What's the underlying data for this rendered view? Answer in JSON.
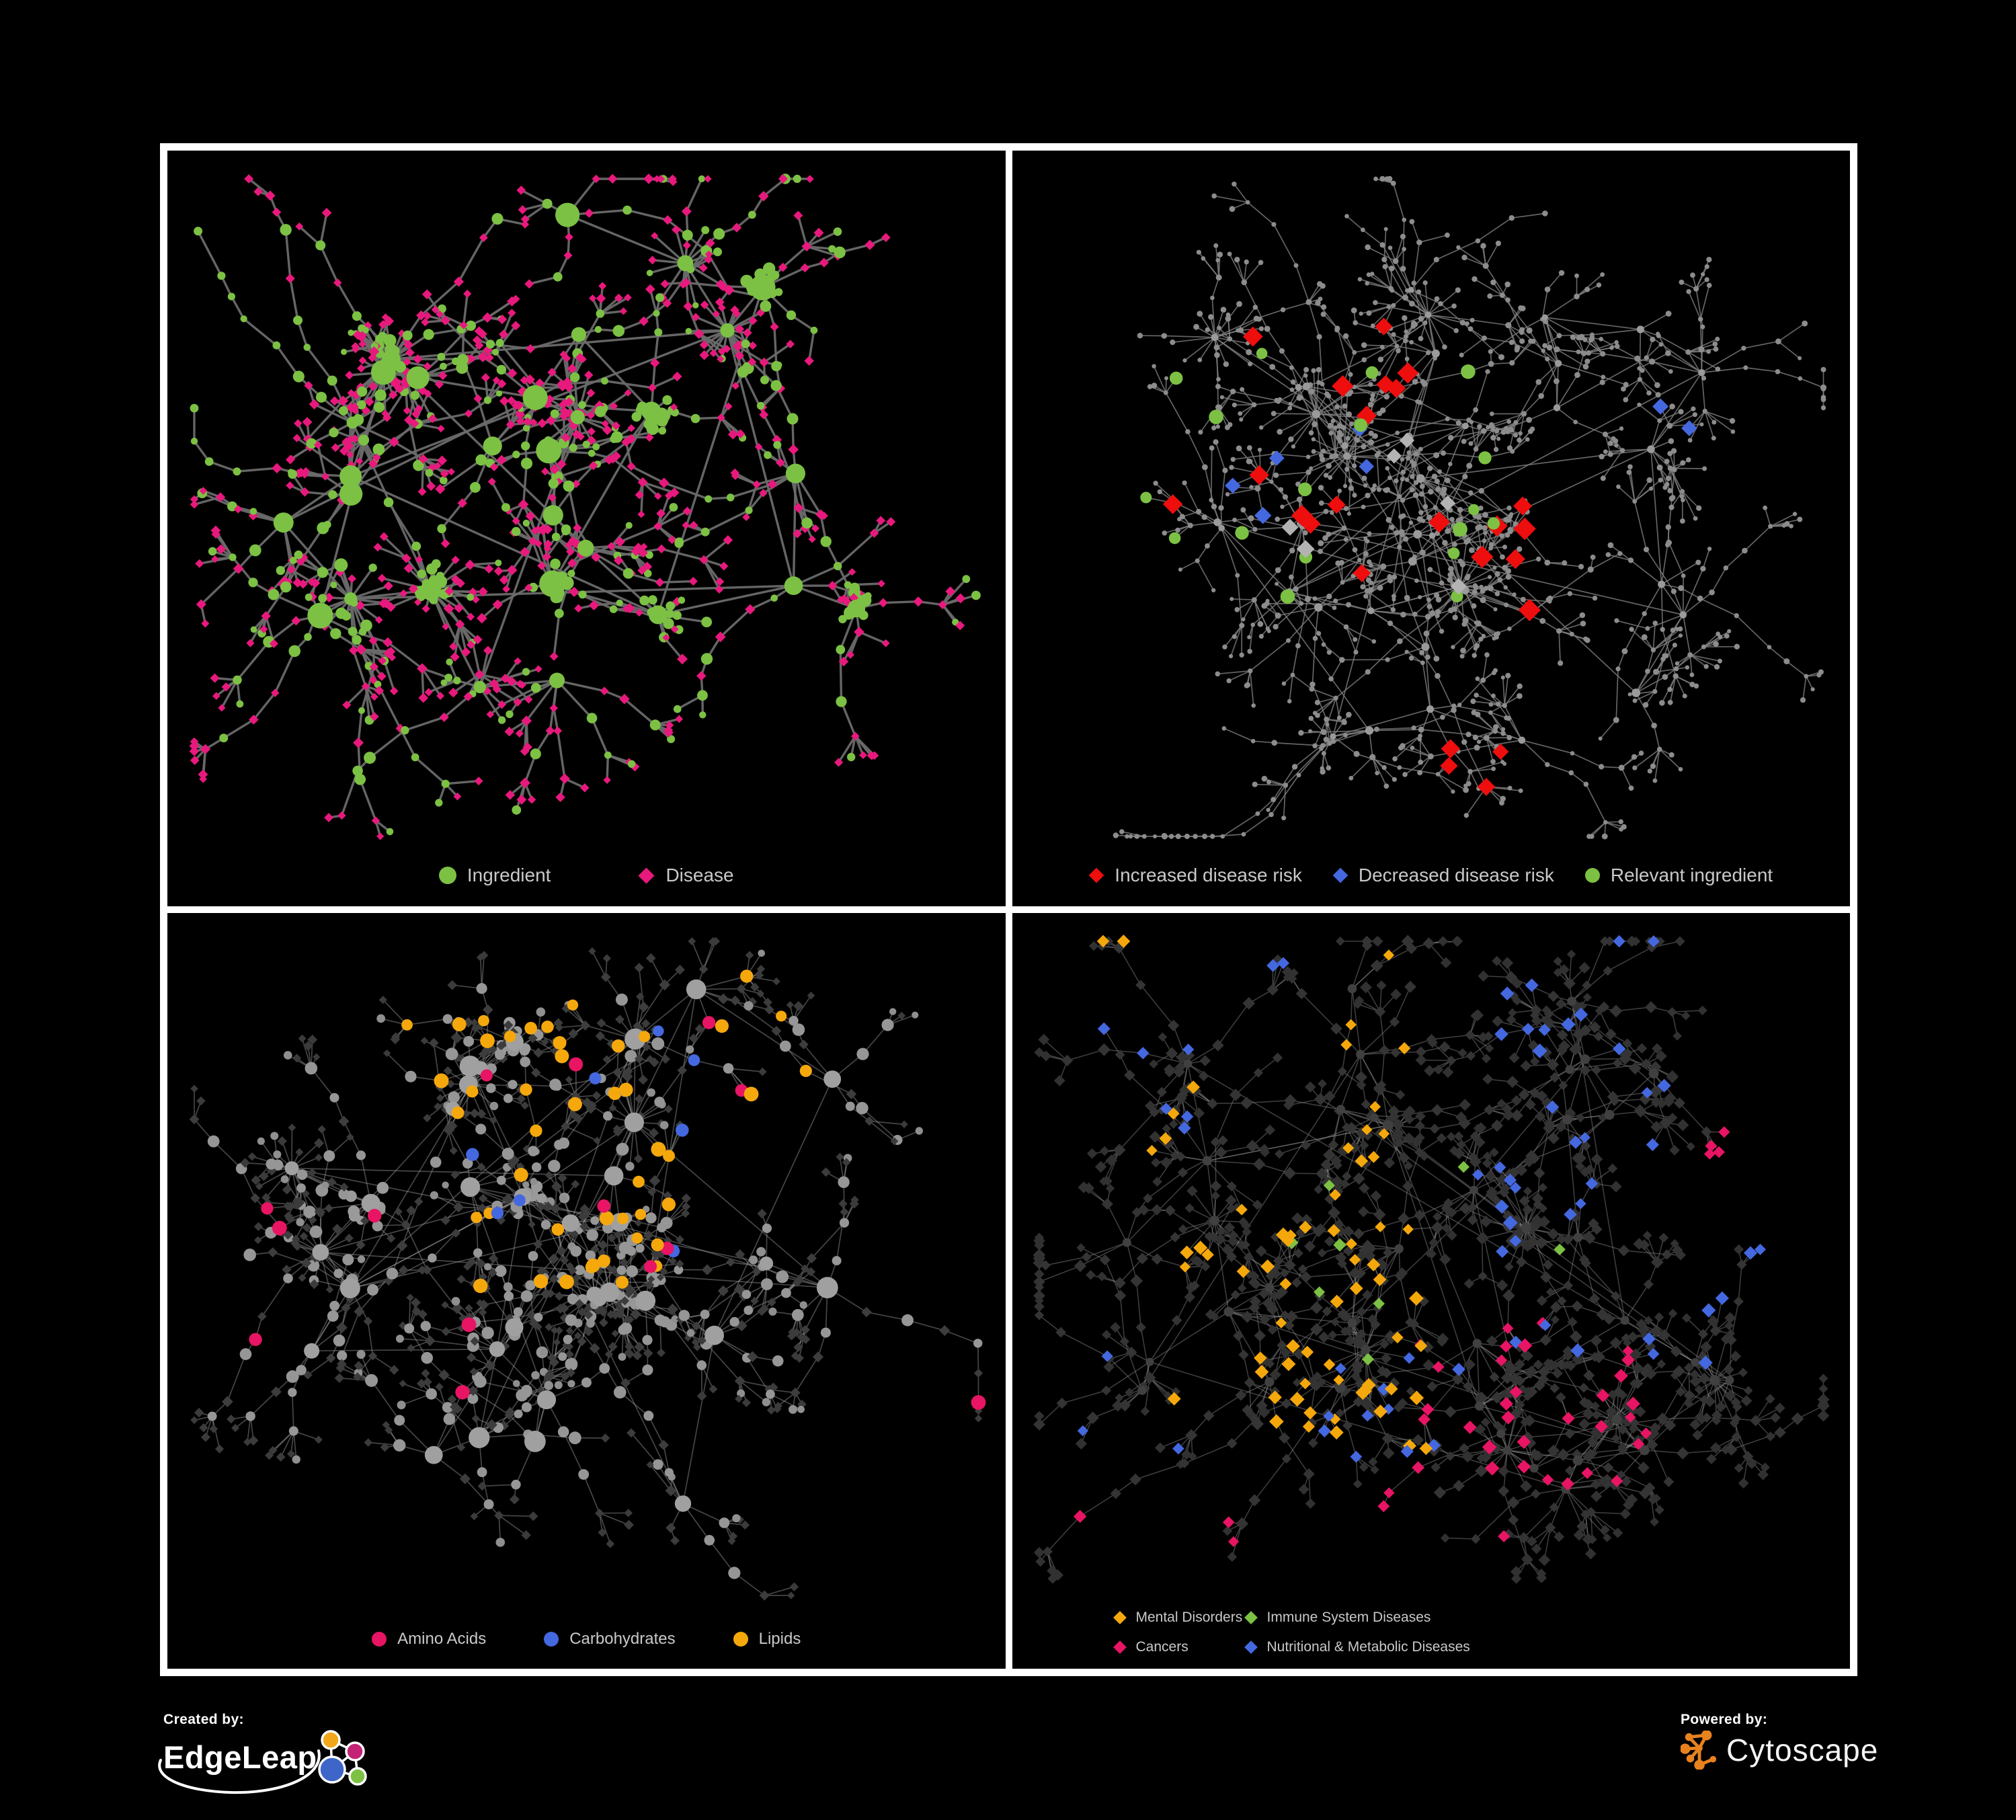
{
  "page": {
    "background": "#000000",
    "frame_color": "#ffffff"
  },
  "branding": {
    "created_by_label": "Created by:",
    "edgeleap_name": "EdgeLeap",
    "powered_by_label": "Powered by:",
    "cytoscape_name": "Cytoscape",
    "edgeleap_logo_colors": {
      "orange": "#F2A71B",
      "magenta": "#C42375",
      "blue": "#3E66C9",
      "green": "#7CC143",
      "stroke": "#FFFFFF"
    },
    "cytoscape_logo_color": "#E8821E"
  },
  "colors": {
    "ingredient_green": "#7CC143",
    "disease_pink": "#E8197D",
    "increased_risk_red": "#EE0E0E",
    "decreased_risk_blue": "#4468DF",
    "neutral_silver": "#B3B3B3",
    "amino_acids_pink": "#E81464",
    "carbohydrates_blue": "#4468DF",
    "lipids_orange": "#F5A80C",
    "legend_text": "#C9C9C9"
  },
  "panels": [
    {
      "name": "ingredient-disease-network",
      "seed": 11,
      "hub_count": 30,
      "branch_min": 3,
      "branch_max": 7,
      "leaf_max": 6,
      "long_chance": 0.12,
      "burst_chance": 0.12,
      "cluster_chance": 0.2,
      "clamp_bottom": 1020,
      "edge": {
        "color": "#6A6A6A",
        "width": 3.4,
        "opacity": 0.95
      },
      "roles": {
        "hub": [
          {
            "shape": "circle",
            "color": "#7CC143",
            "min": 9,
            "max": 20,
            "p": 1
          }
        ],
        "cluster": [
          {
            "shape": "circle",
            "color": "#7CC143",
            "min": 6,
            "max": 10,
            "p": 1
          }
        ],
        "mid": [
          {
            "shape": "diamond",
            "color": "#E8197D",
            "min": 6,
            "max": 8,
            "p": 0.5
          },
          {
            "shape": "circle",
            "color": "#7CC143",
            "min": 5,
            "max": 9,
            "p": 0.5
          }
        ],
        "leaf": [
          {
            "shape": "diamond",
            "color": "#E8197D",
            "min": 5.5,
            "max": 7.5,
            "p": 0.84
          },
          {
            "shape": "circle",
            "color": "#7CC143",
            "min": 4.5,
            "max": 7,
            "p": 0.16
          }
        ]
      },
      "highlights": [],
      "legend_rows": [
        [
          {
            "label": "Ingredient",
            "shape": "circle",
            "color": "#7CC143"
          },
          {
            "label": "Disease",
            "shape": "diamond",
            "color": "#E8197D"
          }
        ]
      ]
    },
    {
      "name": "disease-risk-network",
      "seed": 29,
      "hub_count": 38,
      "branch_min": 3,
      "branch_max": 7,
      "leaf_max": 6,
      "long_chance": 0.14,
      "burst_chance": 0.15,
      "cluster_chance": 0.05,
      "clamp_bottom": 1020,
      "edge": {
        "color": "#7E7E7E",
        "width": 1.7,
        "opacity": 0.8
      },
      "roles": {
        "hub": [
          {
            "shape": "circle",
            "color": "#9A9A9A",
            "min": 4.5,
            "max": 6.5,
            "p": 1
          }
        ],
        "cluster": [
          {
            "shape": "circle",
            "color": "#8C8C8C",
            "min": 3,
            "max": 4.5,
            "p": 1
          }
        ],
        "mid": [
          {
            "shape": "circle",
            "color": "#8C8C8C",
            "min": 3.2,
            "max": 4.6,
            "p": 1
          }
        ],
        "leaf": [
          {
            "shape": "circle",
            "color": "#8C8C8C",
            "min": 3,
            "max": 4.4,
            "p": 1
          }
        ]
      },
      "highlights": [
        {
          "shape": "diamond",
          "color": "#EE0E0E",
          "min": 13,
          "max": 17,
          "zone": [
            0.18,
            0.62,
            0.2,
            0.62
          ],
          "count": 20
        },
        {
          "shape": "diamond",
          "color": "#EE0E0E",
          "min": 12,
          "max": 15,
          "zone": [
            0.5,
            0.72,
            0.68,
            0.87
          ],
          "count": 4
        },
        {
          "shape": "diamond",
          "color": "#4468DF",
          "min": 11,
          "max": 13,
          "zone": [
            0.26,
            0.45,
            0.36,
            0.6
          ],
          "count": 5
        },
        {
          "shape": "diamond",
          "color": "#4468DF",
          "min": 11,
          "max": 12,
          "zone": [
            0.77,
            0.88,
            0.29,
            0.39
          ],
          "count": 2
        },
        {
          "shape": "circle",
          "color": "#7CC143",
          "min": 8,
          "max": 11,
          "zone": [
            0.18,
            0.58,
            0.24,
            0.62
          ],
          "count": 15
        },
        {
          "shape": "circle",
          "color": "#7CC143",
          "min": 8,
          "max": 10,
          "zone": [
            0.06,
            0.2,
            0.28,
            0.52
          ],
          "count": 3
        },
        {
          "shape": "diamond",
          "color": "#B3B3B3",
          "min": 11,
          "max": 14,
          "zone": [
            0.25,
            0.58,
            0.3,
            0.64
          ],
          "count": 6
        }
      ],
      "legend_rows": [
        [
          {
            "label": "Increased disease risk",
            "shape": "diamond",
            "color": "#EE0E0E"
          },
          {
            "label": "Decreased disease risk",
            "shape": "diamond",
            "color": "#4468DF"
          },
          {
            "label": "Relevant ingredient",
            "shape": "circle",
            "color": "#7CC143"
          }
        ]
      ]
    },
    {
      "name": "nutrient-classes-network",
      "seed": 47,
      "hub_count": 33,
      "branch_min": 3,
      "branch_max": 7,
      "leaf_max": 6,
      "long_chance": 0.12,
      "burst_chance": 0.18,
      "cluster_chance": 0.15,
      "clamp_bottom": 1015,
      "edge": {
        "color": "#9C9C9C",
        "width": 1.7,
        "opacity": 0.45
      },
      "roles": {
        "hub": [
          {
            "shape": "circle",
            "color": "#A0A0A0",
            "min": 10,
            "max": 16,
            "p": 1
          }
        ],
        "cluster": [
          {
            "shape": "circle",
            "color": "#9A9A9A",
            "min": 6.5,
            "max": 9,
            "p": 1
          }
        ],
        "mid": [
          {
            "shape": "circle",
            "color": "#969696",
            "min": 6.5,
            "max": 9.5,
            "p": 0.55
          },
          {
            "shape": "diamond",
            "color": "#3D3D3D",
            "min": 6.5,
            "max": 8.5,
            "p": 0.45
          }
        ],
        "leaf": [
          {
            "shape": "diamond",
            "color": "#3B3B3B",
            "min": 5.5,
            "max": 7.5,
            "p": 0.82
          },
          {
            "shape": "circle",
            "color": "#8F8F8F",
            "min": 5,
            "max": 7,
            "p": 0.18
          }
        ]
      },
      "highlights": [
        {
          "shape": "circle",
          "color": "#F5A80C",
          "min": 8,
          "max": 11,
          "zone": [
            0.28,
            0.78,
            0.06,
            0.5
          ],
          "count": 46
        },
        {
          "shape": "circle",
          "color": "#4468DF",
          "min": 8,
          "max": 10,
          "zone": [
            0.33,
            0.68,
            0.08,
            0.46
          ],
          "count": 9
        },
        {
          "shape": "circle",
          "color": "#E81464",
          "min": 8.5,
          "max": 11,
          "zone": [
            0.03,
            0.97,
            0.06,
            0.97
          ],
          "count": 14
        }
      ],
      "legend_rows": [
        [
          {
            "label": "Amino Acids",
            "shape": "circle",
            "color": "#E81464"
          },
          {
            "label": "Carbohydrates",
            "shape": "circle",
            "color": "#4468DF"
          },
          {
            "label": "Lipids",
            "shape": "circle",
            "color": "#F5A80C"
          }
        ]
      ]
    },
    {
      "name": "disease-classes-network",
      "seed": 83,
      "hub_count": 40,
      "branch_min": 3,
      "branch_max": 7,
      "leaf_max": 6,
      "long_chance": 0.12,
      "burst_chance": 0.2,
      "cluster_chance": 0.12,
      "clamp_bottom": 990,
      "edge": {
        "color": "#8F8F8F",
        "width": 1.5,
        "opacity": 0.45
      },
      "roles": {
        "hub": [
          {
            "shape": "circle",
            "color": "#404040",
            "min": 6,
            "max": 8,
            "p": 1
          }
        ],
        "cluster": [
          {
            "shape": "diamond",
            "color": "#333333",
            "min": 7,
            "max": 9,
            "p": 1
          }
        ],
        "mid": [
          {
            "shape": "diamond",
            "color": "#343434",
            "min": 7,
            "max": 9.5,
            "p": 1
          }
        ],
        "leaf": [
          {
            "shape": "diamond",
            "color": "#313131",
            "min": 6.5,
            "max": 9,
            "p": 1
          }
        ]
      },
      "highlights": [
        {
          "shape": "diamond",
          "color": "#F5A80C",
          "min": 8,
          "max": 11,
          "zone": [
            0.18,
            0.5,
            0.36,
            0.72
          ],
          "count": 50
        },
        {
          "shape": "diamond",
          "color": "#F5A80C",
          "min": 8,
          "max": 10,
          "zone": [
            0.03,
            0.48,
            0.03,
            0.34
          ],
          "count": 16
        },
        {
          "shape": "diamond",
          "color": "#E81464",
          "min": 8,
          "max": 11,
          "zone": [
            0.48,
            0.76,
            0.48,
            0.78
          ],
          "count": 32
        },
        {
          "shape": "diamond",
          "color": "#E81464",
          "min": 8,
          "max": 10,
          "zone": [
            0.83,
            0.96,
            0.18,
            0.32
          ],
          "count": 7
        },
        {
          "shape": "diamond",
          "color": "#E81464",
          "min": 8,
          "max": 10,
          "zone": [
            0.08,
            0.62,
            0.76,
            0.97
          ],
          "count": 6
        },
        {
          "shape": "diamond",
          "color": "#4468DF",
          "min": 8,
          "max": 11,
          "zone": [
            0.55,
            0.99,
            0.02,
            0.6
          ],
          "count": 38
        },
        {
          "shape": "diamond",
          "color": "#4468DF",
          "min": 8,
          "max": 10,
          "zone": [
            0.06,
            0.55,
            0.58,
            0.97
          ],
          "count": 14
        },
        {
          "shape": "diamond",
          "color": "#4468DF",
          "min": 8,
          "max": 10,
          "zone": [
            0.02,
            0.33,
            0.02,
            0.3
          ],
          "count": 8
        },
        {
          "shape": "diamond",
          "color": "#7CC143",
          "min": 8,
          "max": 10,
          "zone": [
            0.33,
            0.78,
            0.1,
            0.62
          ],
          "count": 8
        }
      ],
      "legend_rows": [
        [
          {
            "label": "Mental Disorders",
            "shape": "diamond",
            "color": "#F5A80C"
          },
          {
            "label": "Immune System Diseases",
            "shape": "diamond",
            "color": "#7CC143"
          }
        ],
        [
          {
            "label": "Cancers",
            "shape": "diamond",
            "color": "#E81464"
          },
          {
            "label": "Nutritional & Metabolic Diseases",
            "shape": "diamond",
            "color": "#4468DF"
          }
        ]
      ]
    }
  ]
}
